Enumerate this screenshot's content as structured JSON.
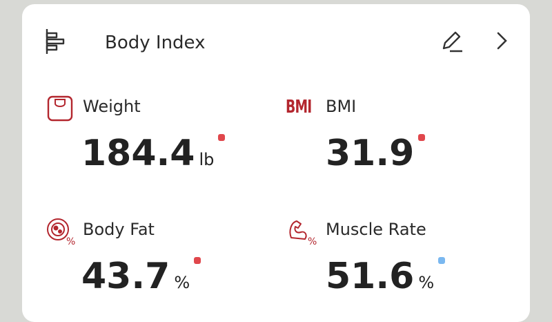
{
  "header": {
    "title": "Body Index"
  },
  "metrics": [
    {
      "label": "Weight",
      "value": 184.4,
      "unit": "lb",
      "status_color": "#e0474c"
    },
    {
      "label": "BMI",
      "icon_text": "BMI",
      "value": 31.9,
      "status_color": "#e0474c"
    },
    {
      "label": "Body Fat",
      "value": 43.7,
      "unit": "%",
      "status_color": "#e0474c"
    },
    {
      "label": "Muscle Rate",
      "value": 51.6,
      "unit": "%",
      "status_color": "#7ab8f0"
    }
  ]
}
